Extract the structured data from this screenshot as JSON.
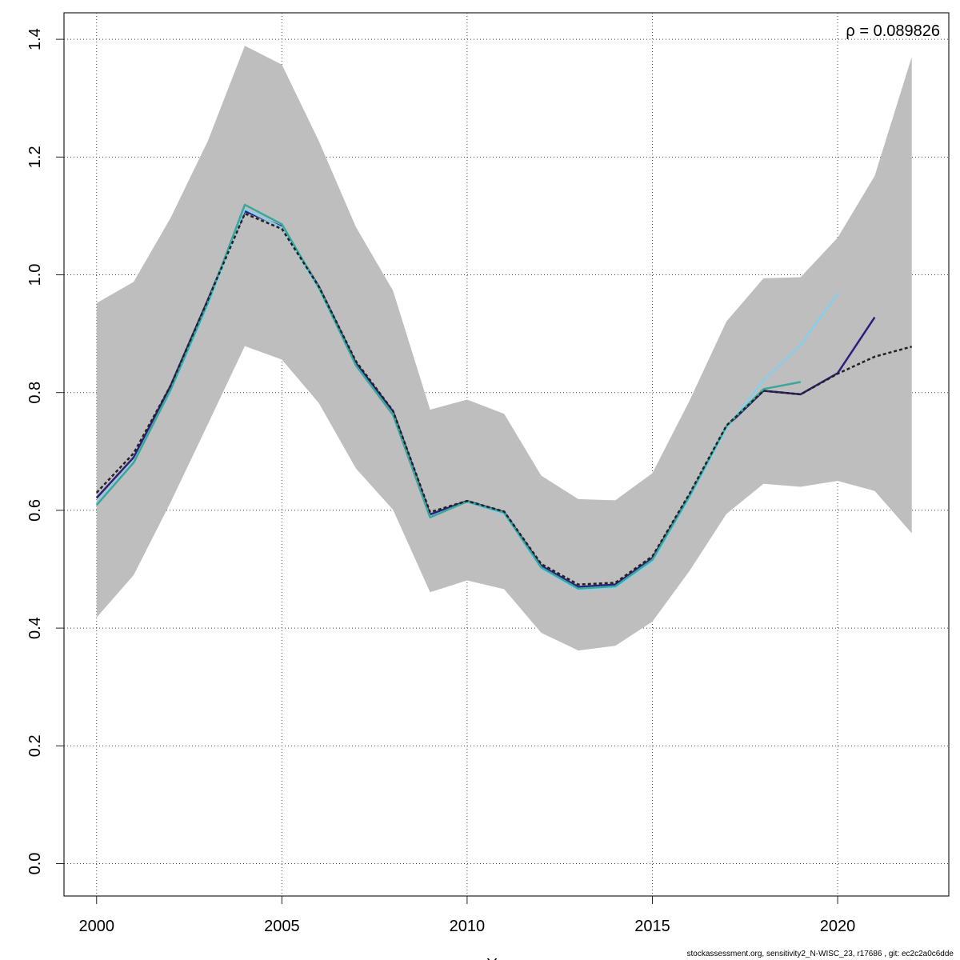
{
  "chart_data": {
    "type": "line",
    "title": "",
    "xlabel": "Y",
    "ylabel": "",
    "xlim": [
      1999.12,
      2023.0
    ],
    "ylim": [
      -0.055,
      1.445
    ],
    "xticks": [
      2000,
      2005,
      2010,
      2015,
      2020
    ],
    "yticks": [
      0.0,
      0.2,
      0.4,
      0.6,
      0.8,
      1.0,
      1.2,
      1.4
    ],
    "ytick_labels": [
      "0.0",
      "0.2",
      "0.4",
      "0.6",
      "0.8",
      "1.0",
      "1.2",
      "1.4"
    ],
    "grid": true,
    "annotation": "ρ = 0.089826",
    "confidence_band": {
      "x": [
        2000,
        2001,
        2002,
        2003,
        2004,
        2005,
        2006,
        2007,
        2008,
        2009,
        2010,
        2011,
        2012,
        2013,
        2014,
        2015,
        2016,
        2017,
        2018,
        2019,
        2020,
        2021,
        2022
      ],
      "upper": [
        0.952,
        0.988,
        1.097,
        1.227,
        1.389,
        1.357,
        1.227,
        1.081,
        0.973,
        0.771,
        0.788,
        0.764,
        0.659,
        0.619,
        0.617,
        0.663,
        0.786,
        0.921,
        0.994,
        0.996,
        1.063,
        1.168,
        1.37
      ],
      "lower": [
        0.418,
        0.49,
        0.614,
        0.746,
        0.879,
        0.856,
        0.782,
        0.671,
        0.601,
        0.461,
        0.481,
        0.466,
        0.392,
        0.362,
        0.37,
        0.411,
        0.497,
        0.594,
        0.645,
        0.64,
        0.65,
        0.633,
        0.561
      ],
      "color": "#bebebe"
    },
    "series": [
      {
        "color": "#2b1f7e",
        "dashed": false,
        "x": [
          2000,
          2001,
          2002,
          2003,
          2004,
          2005,
          2006,
          2007,
          2008,
          2009,
          2010,
          2011,
          2012,
          2013,
          2014,
          2015,
          2016,
          2017,
          2018,
          2019,
          2020,
          2021
        ],
        "values": [
          0.621,
          0.69,
          0.812,
          0.957,
          1.108,
          1.082,
          0.98,
          0.85,
          0.768,
          0.593,
          0.616,
          0.597,
          0.506,
          0.47,
          0.474,
          0.519,
          0.625,
          0.742,
          0.803,
          0.797,
          0.833,
          0.928
        ]
      },
      {
        "color": "#87ceeb",
        "dashed": false,
        "x": [
          2000,
          2001,
          2002,
          2003,
          2004,
          2005,
          2006,
          2007,
          2008,
          2009,
          2010,
          2011,
          2012,
          2013,
          2014,
          2015,
          2016,
          2017,
          2018,
          2019,
          2020
        ],
        "values": [
          0.612,
          0.683,
          0.803,
          0.948,
          1.112,
          1.08,
          0.976,
          0.845,
          0.763,
          0.589,
          0.614,
          0.594,
          0.501,
          0.465,
          0.469,
          0.513,
          0.621,
          0.739,
          0.821,
          0.881,
          0.968
        ]
      },
      {
        "color": "#3aa79a",
        "dashed": false,
        "x": [
          2000,
          2001,
          2002,
          2003,
          2004,
          2005,
          2006,
          2007,
          2008,
          2009,
          2010,
          2011,
          2012,
          2013,
          2014,
          2015,
          2016,
          2017,
          2018,
          2019
        ],
        "values": [
          0.609,
          0.681,
          0.805,
          0.952,
          1.119,
          1.086,
          0.978,
          0.846,
          0.762,
          0.588,
          0.615,
          0.596,
          0.503,
          0.467,
          0.471,
          0.516,
          0.624,
          0.743,
          0.806,
          0.818
        ]
      },
      {
        "color": "#222222",
        "dashed": true,
        "x": [
          2000,
          2001,
          2002,
          2003,
          2004,
          2005,
          2006,
          2007,
          2008,
          2009,
          2010,
          2011,
          2012,
          2013,
          2014,
          2015,
          2016,
          2017,
          2018,
          2019,
          2020,
          2021,
          2022
        ],
        "values": [
          0.63,
          0.697,
          0.812,
          0.957,
          1.104,
          1.078,
          0.98,
          0.853,
          0.769,
          0.597,
          0.616,
          0.598,
          0.509,
          0.474,
          0.477,
          0.522,
          0.628,
          0.744,
          0.803,
          0.797,
          0.832,
          0.861,
          0.878
        ]
      }
    ]
  },
  "footer": "stockassessment.org, sensitivity2_N-WISC_23, r17686 , git: ec2c2a0c6dde"
}
